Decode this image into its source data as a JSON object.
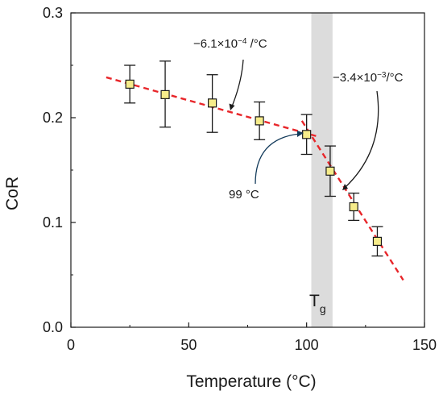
{
  "chart_data": {
    "type": "scatter",
    "xlabel": "Temperature (°C)",
    "ylabel": "CoR",
    "xlim": [
      0,
      150
    ],
    "ylim": [
      0.0,
      0.3
    ],
    "xticks": [
      "0",
      "50",
      "100",
      "150"
    ],
    "yticks": [
      "0.0",
      "0.1",
      "0.2",
      "0.3"
    ],
    "grid": false,
    "points": [
      {
        "x": 25,
        "y": 0.232,
        "err_low": 0.214,
        "err_high": 0.25
      },
      {
        "x": 40,
        "y": 0.222,
        "err_low": 0.191,
        "err_high": 0.254
      },
      {
        "x": 60,
        "y": 0.214,
        "err_low": 0.186,
        "err_high": 0.241
      },
      {
        "x": 80,
        "y": 0.197,
        "err_low": 0.179,
        "err_high": 0.215
      },
      {
        "x": 100,
        "y": 0.184,
        "err_low": 0.165,
        "err_high": 0.203
      },
      {
        "x": 110,
        "y": 0.149,
        "err_low": 0.125,
        "err_high": 0.173
      },
      {
        "x": 120,
        "y": 0.115,
        "err_low": 0.102,
        "err_high": 0.128
      },
      {
        "x": 130,
        "y": 0.082,
        "err_low": 0.068,
        "err_high": 0.096
      }
    ],
    "marker_color": "#f6ec8a",
    "fit_color": "#e8262a",
    "fit_lines": [
      {
        "x": [
          15,
          104
        ],
        "y": [
          0.2385,
          0.1825
        ]
      },
      {
        "x": [
          98,
          141
        ],
        "y": [
          0.197,
          0.045
        ]
      }
    ],
    "tg_band": {
      "x": [
        102,
        111
      ],
      "color": "#dcdcdc",
      "label_main": "T",
      "label_sub": "g"
    },
    "annotations": [
      {
        "text_main": "−6.1×10",
        "text_sup": "−4",
        "text_tail": " /°C",
        "target_x": 70,
        "target_y": 0.206
      },
      {
        "text_main": "−3.4×10",
        "text_sup": "−3",
        "text_tail": "/°C",
        "target_x": 114,
        "target_y": 0.129
      },
      {
        "text_main": "99 °C",
        "text_sup": "",
        "text_tail": "",
        "target_x": 99,
        "target_y": 0.184
      }
    ]
  }
}
